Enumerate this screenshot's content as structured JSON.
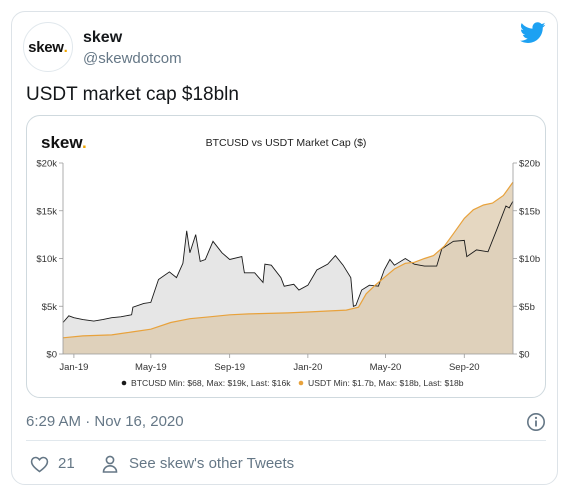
{
  "tweet": {
    "display_name": "skew",
    "handle": "@skewdotcom",
    "avatar_text": "skew",
    "avatar_dot": ".",
    "text": "USDT market cap $18bln",
    "timestamp": "6:29 AM · Nov 16, 2020",
    "like_count": "21",
    "other_tweets_label": "See skew's other Tweets"
  },
  "icons": {
    "brand": "twitter-bird-icon",
    "info": "info-icon",
    "like": "heart-icon",
    "profile": "person-icon"
  },
  "colors": {
    "twitter_blue": "#1da1f2",
    "btc_line": "#1a1a1a",
    "btc_fill": "#e6e6e6",
    "usdt_line": "#e8a23c",
    "usdt_fill": "#dcc9ac",
    "skew_dot": "#f0a500"
  },
  "chart_data": {
    "type": "line",
    "logo_text": "skew",
    "logo_dot": ".",
    "title": "BTCUSD vs USDT Market Cap ($)",
    "x_ticks": [
      "Jan-19",
      "May-19",
      "Sep-19",
      "Jan-20",
      "May-20",
      "Sep-20"
    ],
    "y_left_ticks": [
      "$0",
      "$5k",
      "$10k",
      "$15k",
      "$20k"
    ],
    "y_right_ticks": [
      "$0",
      "$5b",
      "$10b",
      "$15b",
      "$20b"
    ],
    "y_left_lim": [
      0,
      20000
    ],
    "y_right_lim": [
      0,
      20
    ],
    "x_lim": [
      "2018-12-15",
      "2020-11-16"
    ],
    "grid": false,
    "legend_position": "bottom",
    "series": [
      {
        "name": "BTCUSD",
        "stats": "Min: $68, Max: $19k, Last: $16k",
        "axis": "left",
        "points": [
          [
            "2018-12-15",
            3300
          ],
          [
            "2018-12-24",
            4000
          ],
          [
            "2019-01-01",
            3800
          ],
          [
            "2019-01-15",
            3600
          ],
          [
            "2019-02-01",
            3450
          ],
          [
            "2019-02-15",
            3600
          ],
          [
            "2019-03-01",
            3800
          ],
          [
            "2019-03-15",
            3900
          ],
          [
            "2019-04-01",
            4100
          ],
          [
            "2019-04-03",
            4900
          ],
          [
            "2019-04-20",
            5300
          ],
          [
            "2019-05-01",
            5400
          ],
          [
            "2019-05-13",
            7800
          ],
          [
            "2019-05-30",
            8600
          ],
          [
            "2019-06-10",
            8000
          ],
          [
            "2019-06-20",
            9500
          ],
          [
            "2019-06-26",
            12900
          ],
          [
            "2019-07-01",
            10600
          ],
          [
            "2019-07-10",
            12500
          ],
          [
            "2019-07-17",
            9700
          ],
          [
            "2019-07-25",
            9900
          ],
          [
            "2019-08-06",
            11800
          ],
          [
            "2019-08-20",
            10600
          ],
          [
            "2019-09-01",
            9900
          ],
          [
            "2019-09-20",
            10200
          ],
          [
            "2019-09-24",
            8500
          ],
          [
            "2019-10-10",
            8500
          ],
          [
            "2019-10-23",
            7500
          ],
          [
            "2019-10-26",
            9400
          ],
          [
            "2019-11-05",
            9300
          ],
          [
            "2019-11-20",
            8000
          ],
          [
            "2019-11-25",
            7100
          ],
          [
            "2019-12-10",
            7300
          ],
          [
            "2019-12-18",
            6700
          ],
          [
            "2020-01-01",
            7200
          ],
          [
            "2020-01-15",
            8800
          ],
          [
            "2020-02-01",
            9400
          ],
          [
            "2020-02-13",
            10300
          ],
          [
            "2020-02-25",
            9300
          ],
          [
            "2020-03-08",
            8000
          ],
          [
            "2020-03-12",
            5000
          ],
          [
            "2020-03-16",
            5100
          ],
          [
            "2020-03-25",
            6700
          ],
          [
            "2020-04-06",
            7200
          ],
          [
            "2020-04-20",
            7100
          ],
          [
            "2020-04-29",
            8800
          ],
          [
            "2020-05-08",
            9900
          ],
          [
            "2020-05-15",
            9300
          ],
          [
            "2020-06-01",
            10000
          ],
          [
            "2020-06-15",
            9400
          ],
          [
            "2020-07-01",
            9200
          ],
          [
            "2020-07-20",
            9200
          ],
          [
            "2020-07-28",
            11000
          ],
          [
            "2020-08-15",
            11800
          ],
          [
            "2020-09-01",
            11900
          ],
          [
            "2020-09-05",
            10200
          ],
          [
            "2020-09-20",
            10900
          ],
          [
            "2020-10-08",
            10700
          ],
          [
            "2020-10-21",
            12900
          ],
          [
            "2020-11-05",
            15500
          ],
          [
            "2020-11-10",
            15300
          ],
          [
            "2020-11-16",
            16000
          ]
        ]
      },
      {
        "name": "USDT",
        "stats": "Min: $1.7b, Max: $18b, Last: $18b",
        "axis": "right",
        "points": [
          [
            "2018-12-15",
            1.7
          ],
          [
            "2019-01-15",
            1.9
          ],
          [
            "2019-03-01",
            2.0
          ],
          [
            "2019-04-01",
            2.3
          ],
          [
            "2019-05-01",
            2.6
          ],
          [
            "2019-06-01",
            3.3
          ],
          [
            "2019-07-01",
            3.7
          ],
          [
            "2019-08-01",
            3.9
          ],
          [
            "2019-09-01",
            4.1
          ],
          [
            "2019-10-01",
            4.2
          ],
          [
            "2019-12-01",
            4.3
          ],
          [
            "2020-01-01",
            4.4
          ],
          [
            "2020-02-01",
            4.5
          ],
          [
            "2020-03-01",
            4.6
          ],
          [
            "2020-03-20",
            4.9
          ],
          [
            "2020-04-01",
            6.3
          ],
          [
            "2020-04-15",
            7.2
          ],
          [
            "2020-05-01",
            8.1
          ],
          [
            "2020-05-15",
            8.9
          ],
          [
            "2020-06-01",
            9.5
          ],
          [
            "2020-06-15",
            9.6
          ],
          [
            "2020-07-01",
            10.0
          ],
          [
            "2020-07-15",
            10.3
          ],
          [
            "2020-08-01",
            11.3
          ],
          [
            "2020-08-15",
            12.6
          ],
          [
            "2020-09-01",
            14.2
          ],
          [
            "2020-09-15",
            15.1
          ],
          [
            "2020-10-01",
            15.6
          ],
          [
            "2020-10-15",
            15.8
          ],
          [
            "2020-11-01",
            16.6
          ],
          [
            "2020-11-16",
            18.0
          ]
        ]
      }
    ]
  }
}
